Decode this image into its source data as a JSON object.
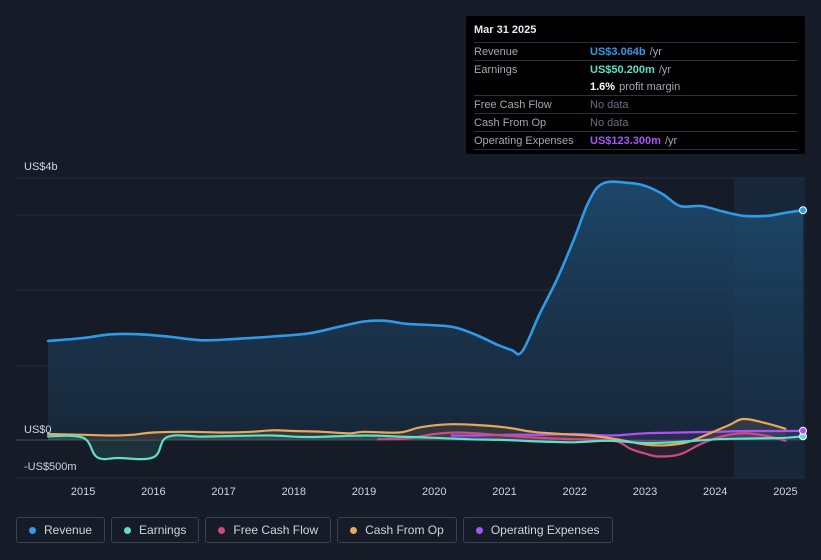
{
  "tooltip": {
    "date": "Mar 31 2025",
    "rows": [
      {
        "label": "Revenue",
        "value": "US$3.064b",
        "unit": "/yr",
        "color": "#2f9be8"
      },
      {
        "label": "Earnings",
        "value": "US$50.200m",
        "unit": "/yr",
        "color": "#5ce0cb"
      },
      {
        "label": "",
        "value": "1.6%",
        "unit": "profit margin",
        "color": "#ffffff"
      },
      {
        "label": "Free Cash Flow",
        "value": "No data",
        "unit": "",
        "color": ""
      },
      {
        "label": "Cash From Op",
        "value": "No data",
        "unit": "",
        "color": ""
      },
      {
        "label": "Operating Expenses",
        "value": "US$123.300m",
        "unit": "/yr",
        "color": "#a855f7"
      }
    ]
  },
  "legend": [
    {
      "label": "Revenue",
      "color": "#2f9be8"
    },
    {
      "label": "Earnings",
      "color": "#5ce0cb"
    },
    {
      "label": "Free Cash Flow",
      "color": "#c94d7f"
    },
    {
      "label": "Cash From Op",
      "color": "#e8a857"
    },
    {
      "label": "Operating Expenses",
      "color": "#a855f7"
    }
  ],
  "chart_data": {
    "type": "line",
    "title": "",
    "xlabel": "",
    "ylabel": "",
    "y_tick_labels": [
      "US$4b",
      "US$0",
      "-US$500m"
    ],
    "ylim": [
      -500,
      3500
    ],
    "x_tick_labels": [
      "2015",
      "2016",
      "2017",
      "2018",
      "2019",
      "2020",
      "2021",
      "2022",
      "2023",
      "2024",
      "2025"
    ],
    "xlim": [
      2014.5,
      2025.25
    ],
    "series": [
      {
        "name": "Revenue",
        "color": "#2f9be8",
        "x": [
          2014.5,
          2015.0,
          2015.4,
          2015.8,
          2016.2,
          2016.7,
          2017.2,
          2017.7,
          2018.2,
          2018.6,
          2019.0,
          2019.3,
          2019.6,
          2020.0,
          2020.3,
          2020.6,
          2020.9,
          2021.1,
          2021.25,
          2021.5,
          2021.75,
          2022.0,
          2022.2,
          2022.4,
          2022.75,
          2023.0,
          2023.25,
          2023.5,
          2023.8,
          2024.1,
          2024.4,
          2024.75,
          2025.0,
          2025.25
        ],
        "values": [
          1320,
          1360,
          1410,
          1410,
          1380,
          1330,
          1350,
          1380,
          1420,
          1500,
          1580,
          1590,
          1550,
          1530,
          1500,
          1400,
          1270,
          1200,
          1180,
          1680,
          2150,
          2700,
          3180,
          3420,
          3430,
          3390,
          3280,
          3120,
          3120,
          3050,
          2990,
          2990,
          3030,
          3064
        ]
      },
      {
        "name": "Earnings",
        "color": "#5ce0cb",
        "x": [
          2014.5,
          2015.0,
          2015.2,
          2015.5,
          2016.0,
          2016.2,
          2016.7,
          2017.2,
          2017.7,
          2018.2,
          2019.0,
          2019.5,
          2020.0,
          2020.5,
          2021.0,
          2021.5,
          2022.0,
          2022.5,
          2023.0,
          2023.5,
          2024.0,
          2024.5,
          2025.0,
          2025.25
        ],
        "values": [
          50,
          30,
          -230,
          -240,
          -230,
          40,
          45,
          55,
          60,
          40,
          60,
          45,
          30,
          10,
          0,
          -20,
          -30,
          -10,
          -40,
          -25,
          10,
          20,
          30,
          50
        ]
      },
      {
        "name": "Free Cash Flow",
        "color": "#c94d7f",
        "x": [
          2019.2,
          2019.6,
          2020.0,
          2020.3,
          2020.6,
          2021.0,
          2021.3,
          2021.7,
          2022.0,
          2022.3,
          2022.6,
          2022.8,
          2023.0,
          2023.2,
          2023.5,
          2023.8,
          2024.1,
          2024.4,
          2024.7,
          2025.0
        ],
        "values": [
          10,
          20,
          80,
          100,
          90,
          60,
          40,
          20,
          10,
          5,
          -20,
          -120,
          -180,
          -220,
          -190,
          -50,
          50,
          90,
          60,
          -10
        ]
      },
      {
        "name": "Cash From Op",
        "color": "#e8a857",
        "x": [
          2014.5,
          2015.0,
          2015.4,
          2015.7,
          2016.0,
          2016.5,
          2017.0,
          2017.4,
          2017.7,
          2018.0,
          2018.4,
          2018.8,
          2019.0,
          2019.5,
          2019.8,
          2020.2,
          2020.6,
          2021.0,
          2021.4,
          2021.8,
          2022.2,
          2022.6,
          2023.0,
          2023.3,
          2023.6,
          2023.9,
          2024.2,
          2024.4,
          2024.7,
          2025.0
        ],
        "values": [
          80,
          70,
          60,
          70,
          100,
          110,
          100,
          110,
          130,
          120,
          110,
          90,
          110,
          100,
          170,
          210,
          200,
          170,
          110,
          80,
          60,
          10,
          -60,
          -70,
          -30,
          80,
          200,
          280,
          230,
          150
        ]
      },
      {
        "name": "Operating Expenses",
        "color": "#a855f7",
        "x": [
          2020.25,
          2020.6,
          2021.0,
          2021.5,
          2022.0,
          2022.5,
          2023.0,
          2023.5,
          2024.0,
          2024.5,
          2025.0,
          2025.25
        ],
        "values": [
          60,
          60,
          70,
          70,
          80,
          60,
          90,
          100,
          110,
          120,
          120,
          123
        ]
      }
    ]
  }
}
